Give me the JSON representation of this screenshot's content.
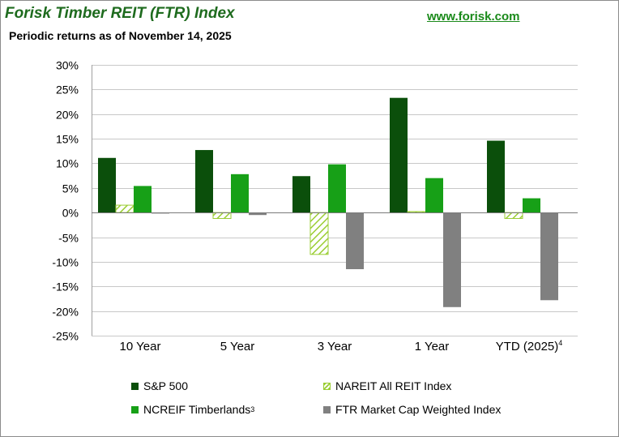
{
  "header": {
    "title": "Forisk Timber REIT (FTR) Index",
    "url": "www.forisk.com",
    "subtitle": "Periodic returns as of  November 14, 2025"
  },
  "colors": {
    "sp500": "#0b4f0b",
    "nareit": "#9acd32",
    "ncreif": "#17a017",
    "ftr": "#808080",
    "grid": "#c8c8c8"
  },
  "chart_data": {
    "type": "bar",
    "categories": [
      "10 Year",
      "5 Year",
      "3 Year",
      "1 Year",
      "YTD (2025)"
    ],
    "category_superscripts": [
      "",
      "",
      "",
      "",
      "4"
    ],
    "series": [
      {
        "name": "S&P 500",
        "superscript": "",
        "values": [
          11.1,
          12.7,
          7.4,
          23.3,
          14.6
        ]
      },
      {
        "name": "NAREIT All REIT Index",
        "superscript": "",
        "values": [
          1.5,
          -1.2,
          -8.5,
          0.2,
          -1.2
        ]
      },
      {
        "name": "NCREIF Timberlands",
        "superscript": "3",
        "values": [
          5.4,
          7.8,
          9.8,
          7.0,
          2.9
        ]
      },
      {
        "name": "FTR Market Cap Weighted Index",
        "superscript": "",
        "values": [
          -0.2,
          -0.5,
          -11.5,
          -19.2,
          -17.8
        ]
      }
    ],
    "ylim": [
      -25,
      30
    ],
    "yticks": [
      30,
      25,
      20,
      15,
      10,
      5,
      0,
      -5,
      -10,
      -15,
      -20,
      -25
    ],
    "ytick_labels": [
      "30%",
      "25%",
      "20%",
      "15%",
      "10%",
      "5%",
      "0%",
      "-5%",
      "-10%",
      "-15%",
      "-20%",
      "-25%"
    ],
    "grid": true,
    "legend_position": "bottom"
  }
}
